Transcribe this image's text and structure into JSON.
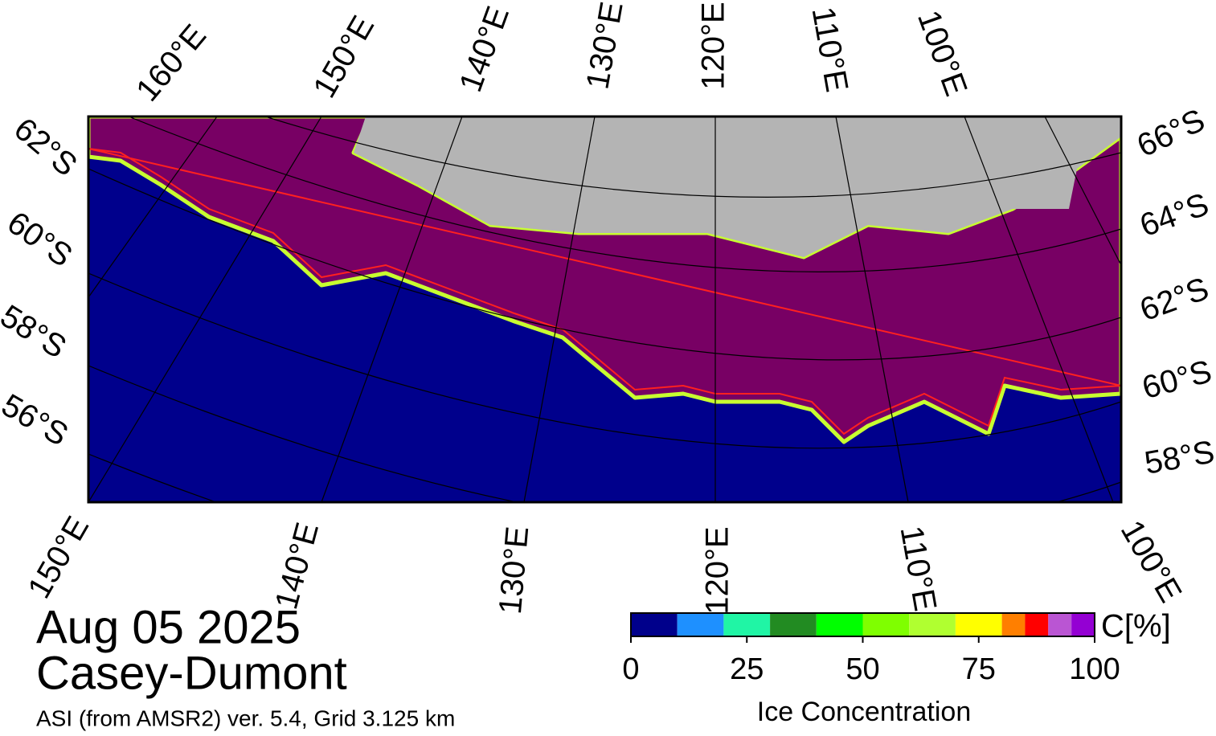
{
  "map": {
    "top_lon_labels": [
      "160°E",
      "150°E",
      "140°E",
      "130°E",
      "120°E",
      "110°E",
      "100°E"
    ],
    "bottom_lon_labels": [
      "150°E",
      "140°E",
      "130°E",
      "120°E",
      "110°E",
      "100°E"
    ],
    "left_lat_labels": [
      "62°S",
      "60°S",
      "58°S",
      "56°S"
    ],
    "right_lat_labels": [
      "66°S",
      "64°S",
      "62°S",
      "60°S",
      "58°S"
    ]
  },
  "date": "Aug 05 2025",
  "region": "Casey-Dumont",
  "subtitle": "ASI (from AMSR2) ver. 5.4,  Grid 3.125 km",
  "colorbar": {
    "label": "Ice Concentration",
    "unit": "C[%]",
    "lim": [
      0,
      100
    ],
    "ticks": [
      0,
      25,
      50,
      75,
      100
    ],
    "bins": [
      0,
      10,
      20,
      30,
      40,
      50,
      60,
      70,
      80,
      85,
      90,
      95,
      100
    ],
    "colors": [
      "#00008b",
      "#1e90ff",
      "#20f5a5",
      "#228b22",
      "#00ff00",
      "#7fff00",
      "#b0ff30",
      "#ffff00",
      "#ff7f00",
      "#ff0000",
      "#ba55d3",
      "#9400d3"
    ]
  }
}
